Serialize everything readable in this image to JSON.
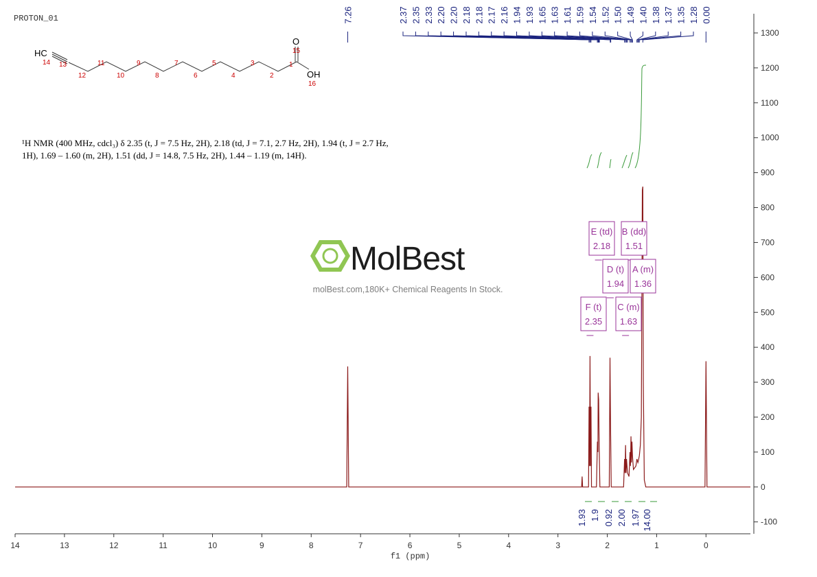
{
  "header": {
    "title": "PROTON_01"
  },
  "structure": {
    "labels": [
      "HC",
      "14",
      "13",
      "12",
      "11",
      "10",
      "9",
      "8",
      "7",
      "6",
      "5",
      "4",
      "3",
      "2",
      "1",
      "O",
      "15",
      "OH",
      "16"
    ]
  },
  "description": [
    "¹H NMR (400 MHz, cdcl₃) δ 2.35 (t, J = 7.5 Hz, 2H), 2.18 (td, J = 7.1, 2.7 Hz, 2H), 1.94 (t, J = 2.7 Hz,",
    "1H), 1.69 – 1.60 (m, 2H), 1.51 (dd, J = 14.8, 7.5 Hz, 2H), 1.44 – 1.19 (m, 14H)."
  ],
  "watermark": {
    "brand": "MolBest",
    "tagline": "molBest.com,180K+ Chemical Reagents In Stock."
  },
  "chart_data": {
    "type": "line",
    "xlabel": "f1 (ppm)",
    "color": "#8b1a1a",
    "xlim": [
      14,
      -0.9
    ],
    "xticks": [
      14,
      13,
      12,
      11,
      10,
      9,
      8,
      7,
      6,
      5,
      4,
      3,
      2,
      1,
      0
    ],
    "ylim": [
      -134,
      1355
    ],
    "yticks": [
      -100,
      0,
      100,
      200,
      300,
      400,
      500,
      600,
      700,
      800,
      900,
      1000,
      1100,
      1200,
      1300
    ],
    "x": [
      14,
      7.28,
      7.26,
      7.24,
      2.52,
      2.51,
      2.5,
      2.38,
      2.37,
      2.36,
      2.35,
      2.34,
      2.33,
      2.32,
      2.22,
      2.2,
      2.19,
      2.185,
      2.175,
      2.165,
      2.15,
      1.96,
      1.945,
      1.935,
      1.92,
      1.67,
      1.65,
      1.64,
      1.63,
      1.62,
      1.61,
      1.59,
      1.56,
      1.54,
      1.53,
      1.52,
      1.51,
      1.5,
      1.49,
      1.47,
      1.42,
      1.4,
      1.38,
      1.37,
      1.35,
      1.33,
      1.31,
      1.29,
      1.28,
      1.27,
      1.25,
      1.22,
      0.02,
      0,
      -0.02,
      -0.9
    ],
    "values": [
      0,
      0,
      345,
      0,
      0,
      30,
      0,
      0,
      230,
      60,
      375,
      60,
      230,
      0,
      0,
      130,
      100,
      270,
      250,
      120,
      0,
      0,
      370,
      190,
      0,
      0,
      80,
      40,
      120,
      40,
      80,
      40,
      30,
      100,
      60,
      145,
      70,
      130,
      90,
      50,
      60,
      80,
      70,
      75,
      90,
      120,
      200,
      850,
      860,
      300,
      20,
      0,
      0,
      360,
      0,
      0
    ],
    "peak_labels": [
      7.26,
      2.37,
      2.35,
      2.33,
      {
        "value": 2.2,
        "label": "2.20"
      },
      {
        "value": 2.2,
        "label": "2.20"
      },
      2.18,
      2.18,
      2.17,
      2.16,
      1.94,
      1.93,
      1.65,
      1.63,
      1.61,
      1.59,
      1.54,
      1.52,
      {
        "value": 1.5,
        "label": "1.50"
      },
      1.49,
      {
        "value": 1.4,
        "label": "1.40"
      },
      1.38,
      1.37,
      1.35,
      1.28,
      {
        "value": 0,
        "label": "0.00"
      }
    ],
    "multiplets": [
      {
        "name": "E (td)",
        "shift": 2.18
      },
      {
        "name": "B (dd)",
        "shift": 1.51
      },
      {
        "name": "D (t)",
        "shift": 1.94
      },
      {
        "name": "A (m)",
        "shift": 1.36
      },
      {
        "name": "F (t)",
        "shift": 2.35
      },
      {
        "name": "C (m)",
        "shift": 1.63
      }
    ],
    "integrals": [
      1.93,
      1.9,
      0.92,
      {
        "value": 2,
        "label": "2.00"
      },
      1.97,
      {
        "value": 14,
        "label": "14.00"
      }
    ]
  }
}
